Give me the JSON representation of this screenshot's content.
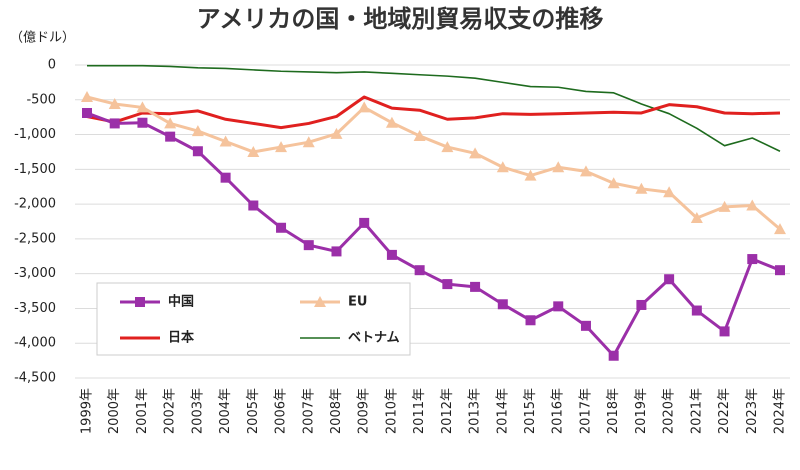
{
  "chart_data": {
    "type": "line",
    "title": "アメリカの国・地域別貿易収支の推移",
    "y_label": "（億ドル）",
    "categories": [
      "1999年",
      "2000年",
      "2001年",
      "2002年",
      "2003年",
      "2004年",
      "2005年",
      "2006年",
      "2007年",
      "2008年",
      "2009年",
      "2010年",
      "2011年",
      "2012年",
      "2013年",
      "2014年",
      "2015年",
      "2016年",
      "2017年",
      "2018年",
      "2019年",
      "2020年",
      "2021年",
      "2022年",
      "2023年",
      "2024年"
    ],
    "series": [
      {
        "name": "中国",
        "color": "#9b2fa8",
        "marker": "square",
        "values": [
          -690,
          -840,
          -830,
          -1030,
          -1240,
          -1620,
          -2020,
          -2340,
          -2590,
          -2680,
          -2270,
          -2730,
          -2950,
          -3150,
          -3190,
          -3440,
          -3670,
          -3470,
          -3750,
          -4180,
          -3450,
          -3080,
          -3530,
          -3830,
          -2790,
          -2950
        ]
      },
      {
        "name": "EU",
        "color": "#f5c39c",
        "marker": "triangle",
        "values": [
          -460,
          -560,
          -610,
          -840,
          -950,
          -1100,
          -1250,
          -1180,
          -1110,
          -990,
          -610,
          -830,
          -1020,
          -1180,
          -1270,
          -1470,
          -1590,
          -1470,
          -1530,
          -1700,
          -1780,
          -1830,
          -2200,
          -2040,
          -2020,
          -2360
        ]
      },
      {
        "name": "日本",
        "color": "#e0201f",
        "marker": "none",
        "values": [
          -740,
          -820,
          -690,
          -700,
          -660,
          -780,
          -840,
          -900,
          -840,
          -740,
          -460,
          -620,
          -650,
          -780,
          -760,
          -700,
          -710,
          -700,
          -690,
          -680,
          -690,
          -570,
          -600,
          -690,
          -700,
          -690
        ]
      },
      {
        "name": "ベトナム",
        "color": "#1e6b1e",
        "marker": "none",
        "values": [
          -10,
          -10,
          -10,
          -20,
          -40,
          -50,
          -70,
          -90,
          -100,
          -110,
          -100,
          -120,
          -140,
          -160,
          -190,
          -250,
          -310,
          -320,
          -380,
          -400,
          -560,
          -700,
          -910,
          -1160,
          -1050,
          -1240
        ]
      }
    ],
    "ylim": [
      -4500,
      0
    ],
    "yticks": [
      0,
      -500,
      {
        "value": -1000,
        "label": "-1,000"
      },
      {
        "value": -1500,
        "label": "-1,500"
      },
      {
        "value": -2000,
        "label": "-2,000"
      },
      {
        "value": -2500,
        "label": "-2,500"
      },
      {
        "value": -3000,
        "label": "-3,000"
      },
      {
        "value": -3500,
        "label": "-3,500"
      },
      {
        "value": -4000,
        "label": "-4,000"
      },
      {
        "value": -4500,
        "label": "-4,500"
      }
    ],
    "grid": true
  }
}
